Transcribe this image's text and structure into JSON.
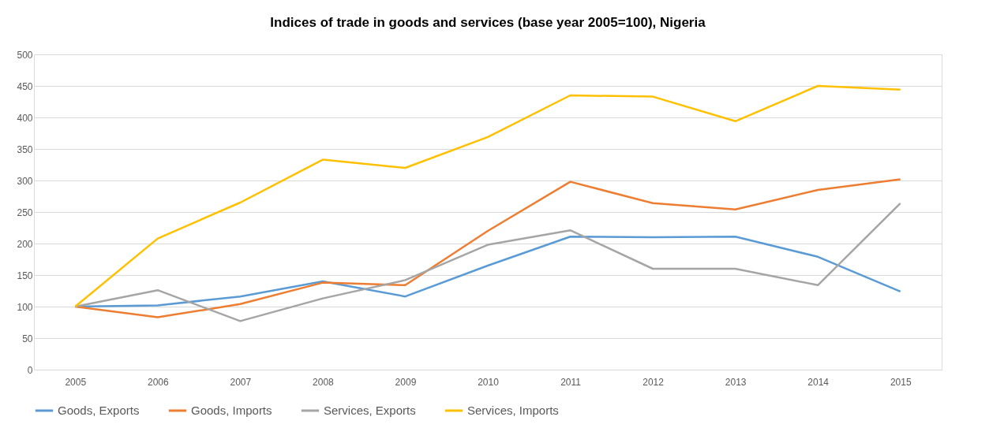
{
  "chart_data": {
    "type": "line",
    "title": "Indices of trade in goods and services (base year 2005=100), Nigeria",
    "categories": [
      "2005",
      "2006",
      "2007",
      "2008",
      "2009",
      "2010",
      "2011",
      "2012",
      "2013",
      "2014",
      "2015"
    ],
    "series": [
      {
        "name": "Goods, Exports",
        "color": "#5b9bd5",
        "values": [
          100,
          102,
          116,
          140,
          116,
          165,
          211,
          210,
          211,
          179,
          124
        ]
      },
      {
        "name": "Goods, Imports",
        "color": "#ed7d31",
        "values": [
          100,
          83,
          104,
          138,
          134,
          220,
          298,
          264,
          254,
          285,
          302
        ]
      },
      {
        "name": "Services, Exports",
        "color": "#a5a5a5",
        "values": [
          100,
          126,
          77,
          113,
          142,
          198,
          221,
          160,
          160,
          134,
          264
        ]
      },
      {
        "name": "Services, Imports",
        "color": "#ffc000",
        "values": [
          100,
          208,
          265,
          333,
          320,
          369,
          435,
          433,
          394,
          450,
          444
        ]
      }
    ],
    "ylim": [
      0,
      500
    ],
    "yticks": [
      0,
      50,
      100,
      150,
      200,
      250,
      300,
      350,
      400,
      450,
      500
    ],
    "grid": "y",
    "legend": "bottom",
    "marker": "none",
    "line_style": "solid"
  }
}
